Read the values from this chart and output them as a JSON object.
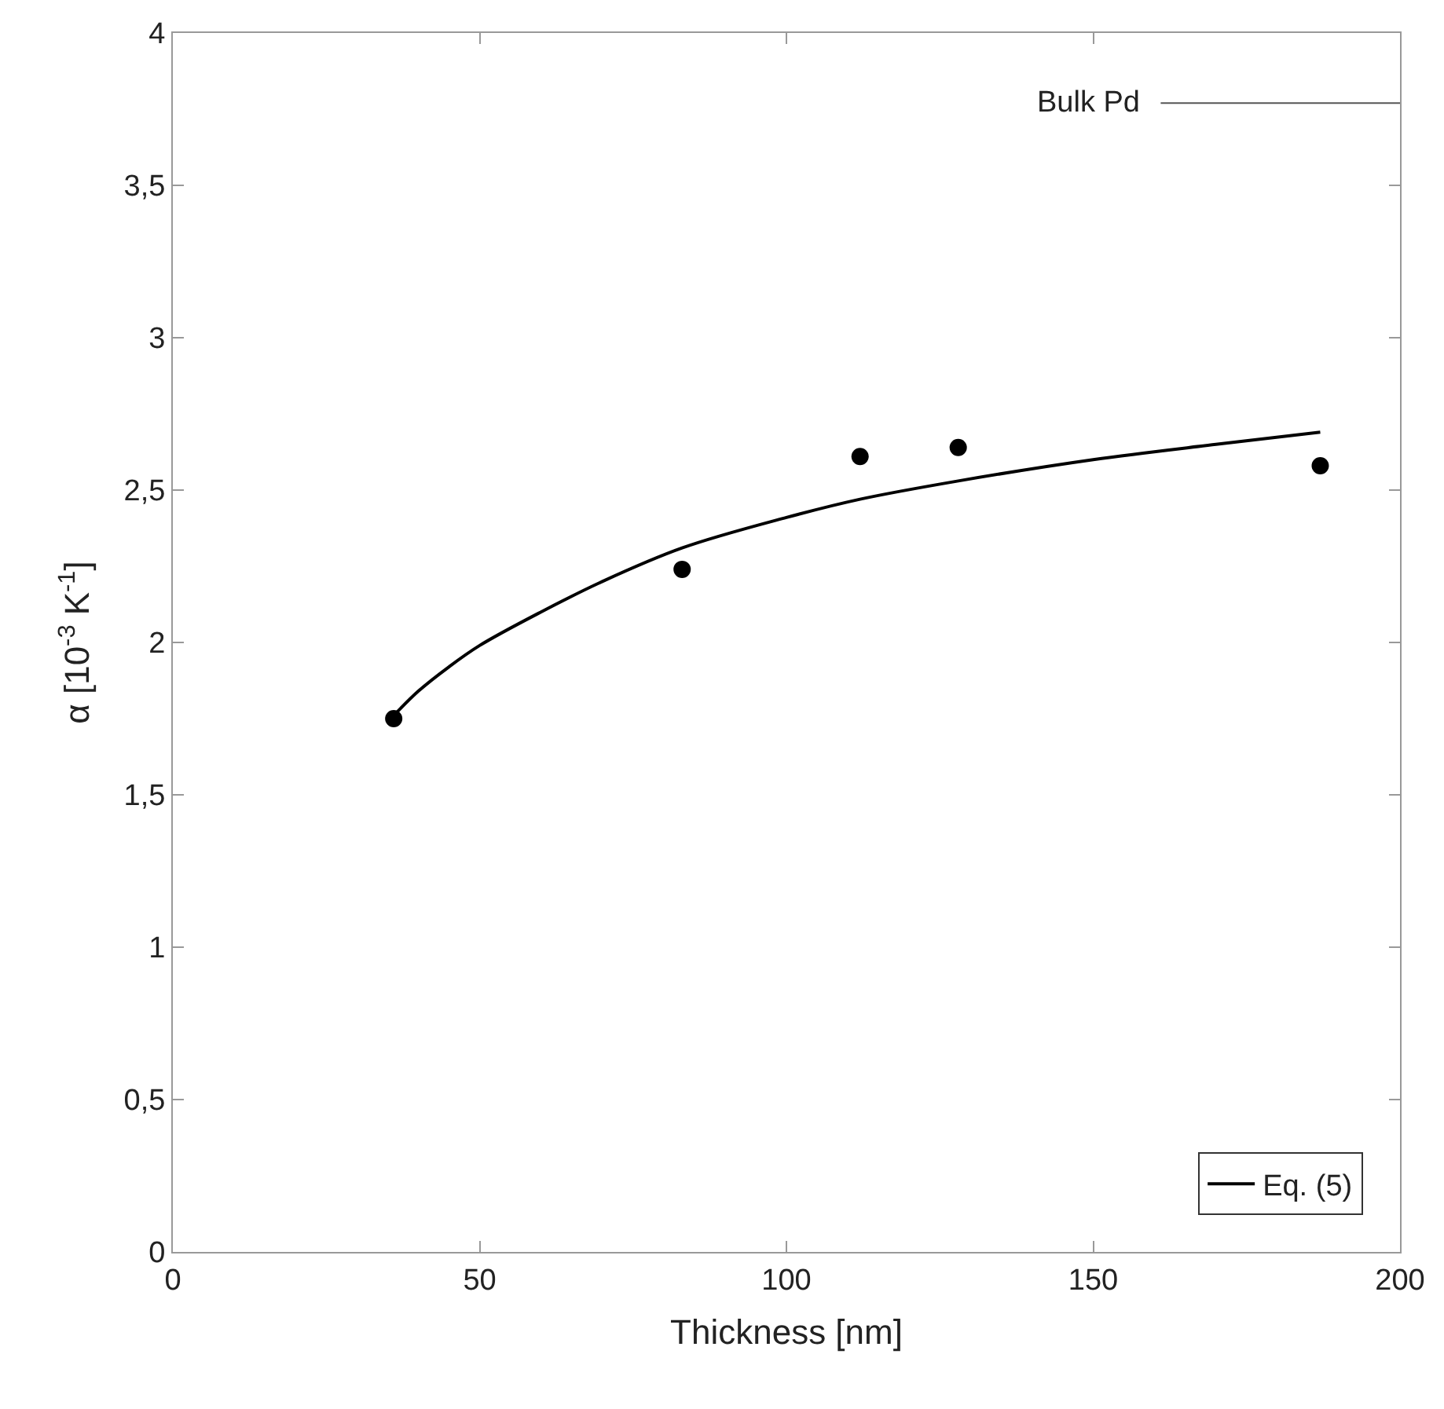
{
  "chart_data": {
    "type": "scatter",
    "xlabel": "Thickness [nm]",
    "ylabel": "α [10$^{-3}$ K$^{-1}$]",
    "xlim": [
      0,
      200
    ],
    "xticks": [
      0,
      50,
      100,
      150,
      200
    ],
    "ylim": [
      0,
      4
    ],
    "yticks": [
      0,
      {
        "value": 0.5,
        "label": "0,5"
      },
      1,
      {
        "value": 1.5,
        "label": "1,5"
      },
      2,
      {
        "value": 2.5,
        "label": "2,5"
      },
      3,
      {
        "value": 3.5,
        "label": "3,5"
      },
      4
    ],
    "legend": "bottom right",
    "series": [
      {
        "color": "#000000",
        "marker": "circle",
        "x": [
          36,
          83,
          112,
          128,
          187
        ],
        "values": [
          1.75,
          2.24,
          2.61,
          2.64,
          2.58
        ]
      },
      {
        "type": "line",
        "name": "Eq. (5)",
        "color": "#000000",
        "line_style": "solid",
        "x": [
          36,
          40,
          45,
          50,
          60,
          70,
          83,
          100,
          112,
          128,
          150,
          170,
          187
        ],
        "values": [
          1.76,
          1.84,
          1.92,
          1.99,
          2.1,
          2.2,
          2.31,
          2.41,
          2.47,
          2.53,
          2.6,
          2.65,
          2.69
        ]
      },
      {
        "type": "line",
        "name": "Bulk Pd",
        "color": "#555555",
        "line_style": "solid",
        "x": [
          161,
          200
        ],
        "values": [
          3.77,
          3.77
        ]
      }
    ]
  }
}
